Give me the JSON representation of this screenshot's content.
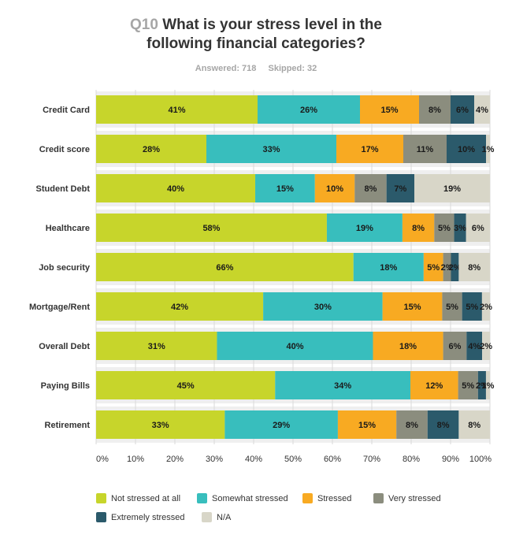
{
  "header": {
    "qnum": "Q10",
    "title_line1": "What is your stress level in the",
    "title_line2": "following financial categories?",
    "answered": "Answered: 718",
    "skipped": "Skipped: 32"
  },
  "chart_data": {
    "type": "bar",
    "orientation": "horizontal",
    "stacked": true,
    "title": "Q10 What is your stress level in the following financial categories?",
    "categories": [
      "Credit Card",
      "Credit score",
      "Student Debt",
      "Healthcare",
      "Job security",
      "Mortgage/Rent",
      "Overall Debt",
      "Paying Bills",
      "Retirement"
    ],
    "series": [
      {
        "name": "Not stressed at all",
        "color": "#c7d52b",
        "values": [
          41,
          28,
          40,
          58,
          66,
          42,
          31,
          45,
          33
        ]
      },
      {
        "name": "Somewhat stressed",
        "color": "#38bebd",
        "values": [
          26,
          33,
          15,
          19,
          18,
          30,
          40,
          34,
          29
        ]
      },
      {
        "name": "Stressed",
        "color": "#f8aa22",
        "values": [
          15,
          17,
          10,
          8,
          5,
          15,
          18,
          12,
          15
        ]
      },
      {
        "name": "Very stressed",
        "color": "#8b8d7e",
        "values": [
          8,
          11,
          8,
          5,
          2,
          5,
          6,
          5,
          8
        ]
      },
      {
        "name": "Extremely stressed",
        "color": "#2b5a6b",
        "values": [
          6,
          10,
          7,
          3,
          2,
          5,
          4,
          2,
          8
        ]
      },
      {
        "name": "N/A",
        "color": "#d8d6c8",
        "values": [
          4,
          1,
          19,
          6,
          8,
          2,
          2,
          1,
          8
        ]
      }
    ],
    "data_labels": [
      [
        "41%",
        "26%",
        "15%",
        "8%",
        "6%",
        "4%"
      ],
      [
        "28%",
        "33%",
        "17%",
        "11%",
        "10%",
        "1%"
      ],
      [
        "40%",
        "15%",
        "10%",
        "8%",
        "7%",
        "19%"
      ],
      [
        "58%",
        "19%",
        "8%",
        "5%",
        "3%",
        "6%"
      ],
      [
        "66%",
        "18%",
        "5%",
        "2%",
        "2%",
        "8%"
      ],
      [
        "42%",
        "30%",
        "15%",
        "5%",
        "5%",
        "2%"
      ],
      [
        "31%",
        "40%",
        "18%",
        "6%",
        "4%",
        "2%"
      ],
      [
        "45%",
        "34%",
        "12%",
        "5%",
        "2%",
        "1%"
      ],
      [
        "33%",
        "29%",
        "15%",
        "8%",
        "8%",
        "8%"
      ]
    ],
    "x_ticks": [
      "0%",
      "10%",
      "20%",
      "30%",
      "40%",
      "50%",
      "60%",
      "70%",
      "80%",
      "90%",
      "100%"
    ],
    "xlim": [
      0,
      100
    ],
    "grid": true,
    "row_background": "#efefef",
    "legend_position": "bottom"
  }
}
